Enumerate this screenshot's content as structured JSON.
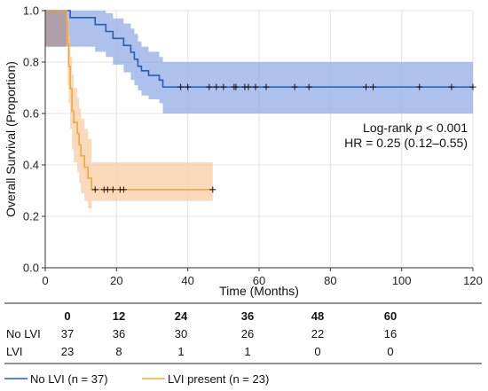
{
  "chart_data": {
    "type": "line",
    "subtype": "kaplan-meier",
    "xlabel": "Time (Months)",
    "ylabel": "Overall Survival (Proportion)",
    "xlim": [
      0,
      120
    ],
    "ylim": [
      0,
      1.0
    ],
    "xticks": [
      0,
      20,
      40,
      60,
      80,
      100,
      120
    ],
    "yticks": [
      0.0,
      0.2,
      0.4,
      0.6,
      0.8,
      1.0
    ],
    "grid": true,
    "annotation_lines": [
      "Log-rank ",
      "p",
      " < 0.001",
      "HR = 0.25 (0.12–0.55)"
    ],
    "series": [
      {
        "name": "No LVI (n = 37)",
        "color": "#1f5fbf",
        "band_color": "#8fa8e4",
        "steps": [
          [
            0,
            1.0
          ],
          [
            7,
            0.973
          ],
          [
            14,
            0.946
          ],
          [
            17,
            0.919
          ],
          [
            19,
            0.892
          ],
          [
            22,
            0.865
          ],
          [
            24,
            0.838
          ],
          [
            25,
            0.811
          ],
          [
            26,
            0.784
          ],
          [
            27,
            0.766
          ],
          [
            29,
            0.748
          ],
          [
            32,
            0.73
          ],
          [
            33,
            0.703
          ],
          [
            120,
            0.703
          ]
        ],
        "lower": [
          [
            0,
            0.86
          ],
          [
            7,
            0.86
          ],
          [
            14,
            0.84
          ],
          [
            17,
            0.82
          ],
          [
            19,
            0.79
          ],
          [
            22,
            0.76
          ],
          [
            24,
            0.73
          ],
          [
            25,
            0.71
          ],
          [
            26,
            0.69
          ],
          [
            27,
            0.67
          ],
          [
            29,
            0.655
          ],
          [
            32,
            0.64
          ],
          [
            33,
            0.6
          ],
          [
            120,
            0.6
          ]
        ],
        "upper": [
          [
            0,
            1.0
          ],
          [
            14,
            1.0
          ],
          [
            17,
            0.99
          ],
          [
            19,
            0.97
          ],
          [
            22,
            0.95
          ],
          [
            24,
            0.93
          ],
          [
            25,
            0.91
          ],
          [
            26,
            0.88
          ],
          [
            27,
            0.86
          ],
          [
            29,
            0.84
          ],
          [
            32,
            0.82
          ],
          [
            33,
            0.8
          ],
          [
            120,
            0.8
          ]
        ],
        "censored": [
          38,
          40,
          46,
          48,
          50,
          53,
          53.5,
          56,
          57,
          59,
          62,
          70,
          74,
          90,
          92,
          105,
          114,
          120
        ]
      },
      {
        "name": "LVI present (n = 23)",
        "color": "#f0a830",
        "band_color": "#f8cca0",
        "steps": [
          [
            0,
            1.0
          ],
          [
            6,
            0.957
          ],
          [
            6.3,
            0.87
          ],
          [
            6.6,
            0.783
          ],
          [
            7,
            0.696
          ],
          [
            7.5,
            0.609
          ],
          [
            8,
            0.565
          ],
          [
            9,
            0.522
          ],
          [
            9.5,
            0.478
          ],
          [
            10,
            0.435
          ],
          [
            11,
            0.391
          ],
          [
            12,
            0.348
          ],
          [
            13,
            0.304
          ],
          [
            47,
            0.304
          ]
        ],
        "lower": [
          [
            0,
            0.86
          ],
          [
            6,
            0.86
          ],
          [
            6.3,
            0.71
          ],
          [
            6.6,
            0.64
          ],
          [
            7,
            0.54
          ],
          [
            7.5,
            0.46
          ],
          [
            8,
            0.41
          ],
          [
            9,
            0.37
          ],
          [
            9.5,
            0.33
          ],
          [
            10,
            0.29
          ],
          [
            11,
            0.26
          ],
          [
            12,
            0.23
          ],
          [
            13,
            0.26
          ],
          [
            47,
            0.26
          ]
        ],
        "upper": [
          [
            0,
            1.0
          ],
          [
            6,
            1.0
          ],
          [
            6.3,
            0.96
          ],
          [
            6.6,
            0.9
          ],
          [
            7,
            0.82
          ],
          [
            7.5,
            0.75
          ],
          [
            8,
            0.7
          ],
          [
            9,
            0.66
          ],
          [
            9.5,
            0.62
          ],
          [
            10,
            0.58
          ],
          [
            11,
            0.54
          ],
          [
            12,
            0.5
          ],
          [
            13,
            0.41
          ],
          [
            47,
            0.41
          ]
        ],
        "censored": [
          14,
          16.5,
          17.5,
          19,
          21,
          22,
          47
        ]
      }
    ],
    "overlap_band_color": "#a89aa8",
    "risk_table": {
      "times": [
        "0",
        "12",
        "24",
        "36",
        "48",
        "60"
      ],
      "rows": [
        {
          "label": "No LVI",
          "values": [
            "37",
            "36",
            "30",
            "26",
            "22",
            "16"
          ]
        },
        {
          "label": "LVI",
          "values": [
            "23",
            "8",
            "1",
            "1",
            "0",
            "0"
          ]
        }
      ]
    },
    "legend": [
      {
        "label": "No LVI (n = 37)",
        "color": "#1f5fbf"
      },
      {
        "label": "LVI present (n = 23)",
        "color": "#f0a830"
      }
    ]
  }
}
